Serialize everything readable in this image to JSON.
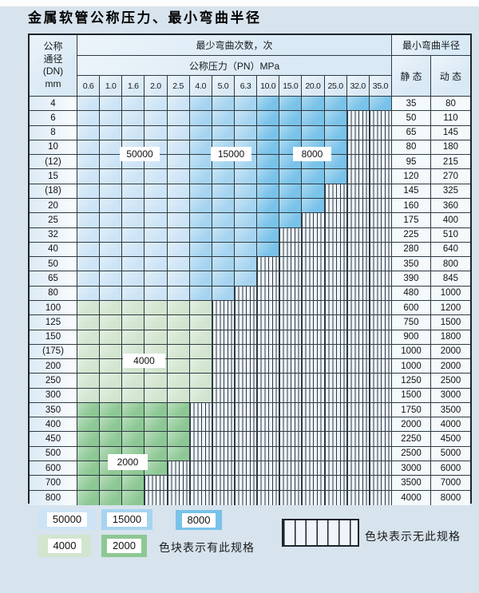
{
  "title": "金属软管公称压力、最小弯曲半径",
  "table": {
    "header": {
      "dn_lines": [
        "公称",
        "通径",
        "(DN)",
        "mm"
      ],
      "bend_cycles": "最少弯曲次数，次",
      "pressure": "公称压力（PN）MPa",
      "bend_radius": "最小弯曲半径",
      "static": "静 态",
      "dynamic": "动 态",
      "pressures": [
        "0.6",
        "1.0",
        "1.6",
        "2.0",
        "2.5",
        "4.0",
        "5.0",
        "6.3",
        "10.0",
        "15.0",
        "20.0",
        "25.0",
        "32.0",
        "35.0"
      ]
    },
    "rows": [
      {
        "dn": "4",
        "last": 13,
        "band": "blue",
        "static": "35",
        "dynamic": "80"
      },
      {
        "dn": "6",
        "last": 11,
        "band": "blue",
        "static": "50",
        "dynamic": "110"
      },
      {
        "dn": "8",
        "last": 11,
        "band": "blue",
        "static": "65",
        "dynamic": "145"
      },
      {
        "dn": "10",
        "last": 11,
        "band": "blue",
        "static": "80",
        "dynamic": "180"
      },
      {
        "dn": "(12)",
        "last": 11,
        "band": "blue",
        "static": "95",
        "dynamic": "215"
      },
      {
        "dn": "15",
        "last": 11,
        "band": "blue",
        "static": "120",
        "dynamic": "270"
      },
      {
        "dn": "(18)",
        "last": 10,
        "band": "blue",
        "static": "145",
        "dynamic": "325"
      },
      {
        "dn": "20",
        "last": 10,
        "band": "blue",
        "static": "160",
        "dynamic": "360"
      },
      {
        "dn": "25",
        "last": 9,
        "band": "blue",
        "static": "175",
        "dynamic": "400"
      },
      {
        "dn": "32",
        "last": 8,
        "band": "blue",
        "static": "225",
        "dynamic": "510"
      },
      {
        "dn": "40",
        "last": 8,
        "band": "blue",
        "static": "280",
        "dynamic": "640"
      },
      {
        "dn": "50",
        "last": 7,
        "band": "blue",
        "static": "350",
        "dynamic": "800"
      },
      {
        "dn": "65",
        "last": 7,
        "band": "blue",
        "static": "390",
        "dynamic": "845"
      },
      {
        "dn": "80",
        "last": 6,
        "band": "blue",
        "static": "480",
        "dynamic": "1000"
      },
      {
        "dn": "100",
        "last": 5,
        "band": "g4000",
        "static": "600",
        "dynamic": "1200"
      },
      {
        "dn": "125",
        "last": 5,
        "band": "g4000",
        "static": "750",
        "dynamic": "1500"
      },
      {
        "dn": "150",
        "last": 5,
        "band": "g4000",
        "static": "900",
        "dynamic": "1800"
      },
      {
        "dn": "(175)",
        "last": 5,
        "band": "g4000",
        "static": "1000",
        "dynamic": "2000"
      },
      {
        "dn": "200",
        "last": 5,
        "band": "g4000",
        "static": "1000",
        "dynamic": "2000"
      },
      {
        "dn": "250",
        "last": 5,
        "band": "g4000",
        "static": "1250",
        "dynamic": "2500"
      },
      {
        "dn": "300",
        "last": 5,
        "band": "g4000",
        "static": "1500",
        "dynamic": "3000"
      },
      {
        "dn": "350",
        "last": 4,
        "band": "g2000",
        "static": "1750",
        "dynamic": "3500"
      },
      {
        "dn": "400",
        "last": 4,
        "band": "g2000",
        "static": "2000",
        "dynamic": "4000"
      },
      {
        "dn": "450",
        "last": 4,
        "band": "g2000",
        "static": "2250",
        "dynamic": "4500"
      },
      {
        "dn": "500",
        "last": 4,
        "band": "g2000",
        "static": "2500",
        "dynamic": "5000"
      },
      {
        "dn": "600",
        "last": 3,
        "band": "g2000",
        "static": "3000",
        "dynamic": "6000"
      },
      {
        "dn": "700",
        "last": 2,
        "band": "g2000",
        "static": "3500",
        "dynamic": "7000"
      },
      {
        "dn": "800",
        "last": 2,
        "band": "g2000",
        "static": "4000",
        "dynamic": "8000"
      }
    ]
  },
  "overlays": [
    "50000",
    "15000",
    "8000",
    "4000",
    "2000"
  ],
  "legend": {
    "items": [
      "50000",
      "15000",
      "8000",
      "4000",
      "2000"
    ],
    "has_spec": "色块表示有此规格",
    "no_spec": "色块表示无此规格"
  },
  "colors": {
    "c50000": "#cde4f6",
    "c15000": "#a6d4f0",
    "c8000": "#79c2e9",
    "c4000": "#d1e5cf",
    "c2000": "#8dc894",
    "page_bg": "#d7e3ed",
    "header_bg": "#d9e9f5",
    "hatch_bg": "#eef4fa",
    "grid_line": "#2e3a42",
    "value_bg": "#f4f9fc"
  }
}
